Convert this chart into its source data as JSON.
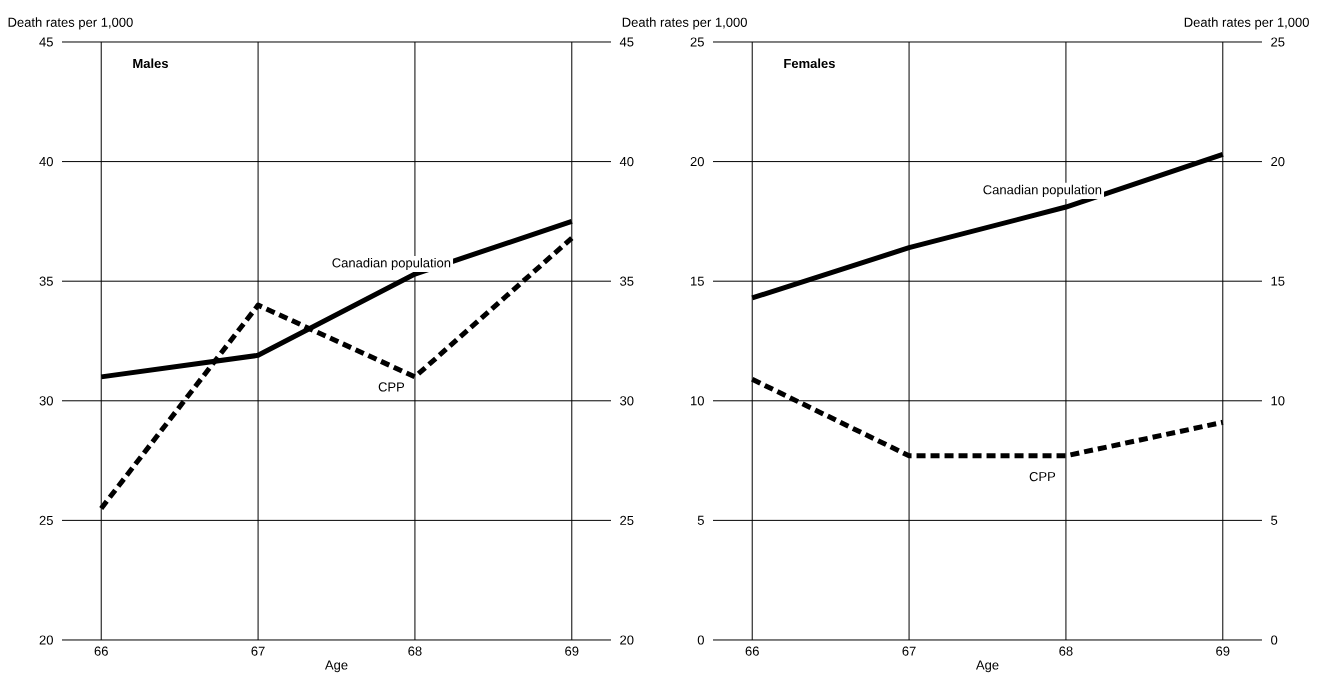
{
  "chart_data": [
    {
      "type": "line",
      "title": "Males",
      "xlabel": "Age",
      "ylabel": "Death rates per 1,000",
      "x": [
        66,
        67,
        68,
        69
      ],
      "xlim": [
        65.75,
        69.25
      ],
      "xticks": [
        66,
        67,
        68,
        69
      ],
      "ylim": [
        20,
        45
      ],
      "yticks": [
        20,
        25,
        30,
        35,
        40,
        45
      ],
      "y2lim": [
        20,
        45
      ],
      "y2ticks": [
        20,
        25,
        30,
        35,
        40,
        45
      ],
      "grid": true,
      "marker": "none",
      "series": [
        {
          "name": "Canadian population",
          "color": "#000000",
          "line_style": "solid",
          "values": [
            31.0,
            31.9,
            35.3,
            37.5
          ]
        },
        {
          "name": "CPP",
          "color": "#000000",
          "line_style": "dashed",
          "values": [
            25.5,
            34.0,
            31.0,
            36.8
          ]
        }
      ]
    },
    {
      "type": "line",
      "title": "Females",
      "xlabel": "Age",
      "ylabel": "Death rates per 1,000",
      "y2label": "Death rates per 1,000",
      "x": [
        66,
        67,
        68,
        69
      ],
      "xlim": [
        65.75,
        69.25
      ],
      "xticks": [
        66,
        67,
        68,
        69
      ],
      "ylim": [
        0,
        25
      ],
      "yticks": [
        0,
        5,
        10,
        15,
        20,
        25
      ],
      "y2lim": [
        0,
        25
      ],
      "y2ticks": [
        0,
        5,
        10,
        15,
        20,
        25
      ],
      "grid": true,
      "marker": "none",
      "series": [
        {
          "name": "Canadian population",
          "color": "#000000",
          "line_style": "solid",
          "values": [
            14.3,
            16.4,
            18.1,
            20.3
          ]
        },
        {
          "name": "CPP",
          "color": "#000000",
          "line_style": "dashed",
          "values": [
            10.9,
            7.7,
            7.7,
            9.1
          ]
        }
      ]
    }
  ]
}
